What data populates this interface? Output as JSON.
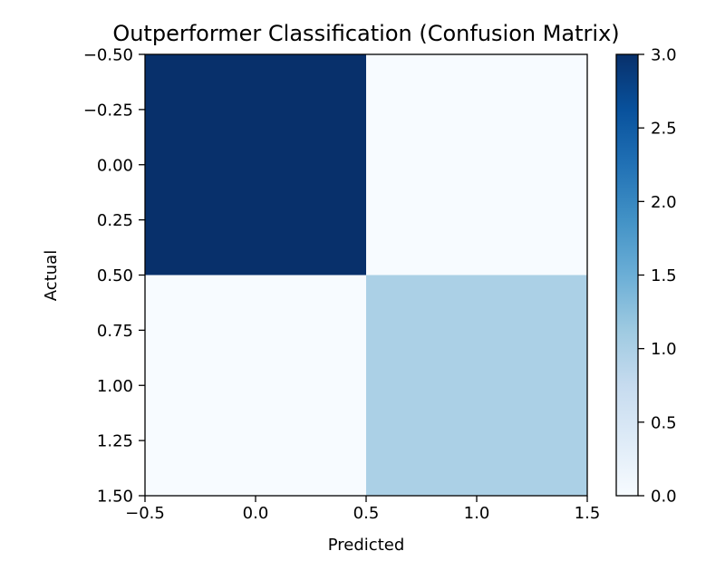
{
  "chart_data": {
    "type": "heatmap",
    "title": "Outperformer Classification (Confusion Matrix)",
    "xlabel": "Predicted",
    "ylabel": "Actual",
    "matrix": [
      [
        3,
        0
      ],
      [
        0,
        1
      ]
    ],
    "xlim": [
      -0.5,
      1.5
    ],
    "ylim": [
      1.5,
      -0.5
    ],
    "x_ticks": [
      -0.5,
      0.0,
      0.5,
      1.0,
      1.5
    ],
    "x_tick_labels": [
      "−0.5",
      "0.0",
      "0.5",
      "1.0",
      "1.5"
    ],
    "y_ticks": [
      -0.5,
      -0.25,
      0.0,
      0.25,
      0.5,
      0.75,
      1.0,
      1.25,
      1.5
    ],
    "y_tick_labels": [
      "−0.50",
      "−0.25",
      "0.00",
      "0.25",
      "0.50",
      "0.75",
      "1.00",
      "1.25",
      "1.50"
    ],
    "colorbar": {
      "range": [
        0.0,
        3.0
      ],
      "ticks": [
        0.0,
        0.5,
        1.0,
        1.5,
        2.0,
        2.5,
        3.0
      ],
      "tick_labels": [
        "0.0",
        "0.5",
        "1.0",
        "1.5",
        "2.0",
        "2.5",
        "3.0"
      ],
      "colormap": "Blues",
      "low_color": "#f7fbff",
      "high_color": "#08306b"
    },
    "grid": false
  }
}
